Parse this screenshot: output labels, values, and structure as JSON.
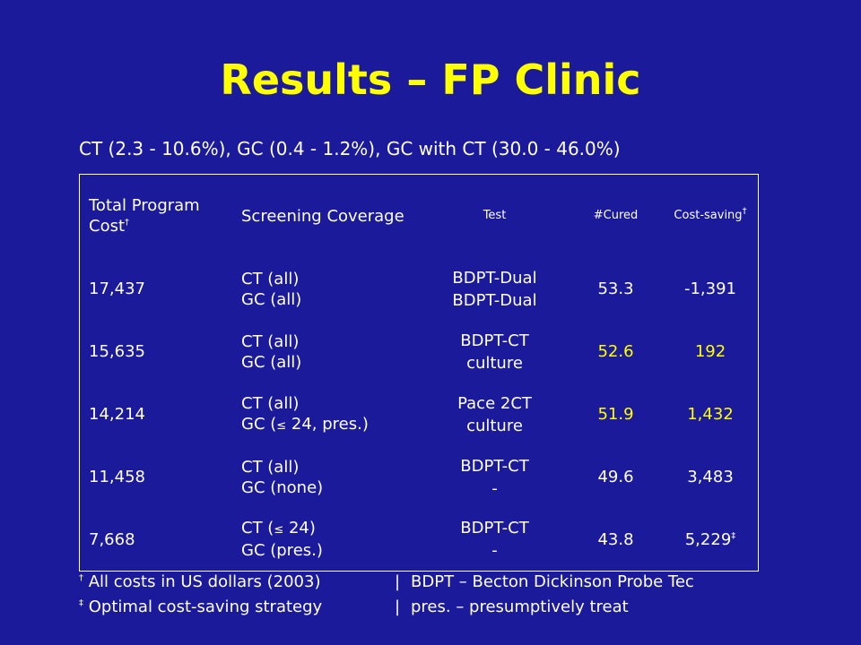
{
  "title": "Results – FP Clinic",
  "subtitle": "CT (2.3 - 10.6%), GC (0.4 - 1.2%), GC with CT (30.0 - 46.0%)",
  "table": {
    "headers": {
      "cost": "Total Program Cost",
      "coverage": "Screening Coverage",
      "test": "Test",
      "cured": "#Cured",
      "saving": "Cost-saving",
      "dagger": "†"
    },
    "rows": [
      {
        "cost": "17,437",
        "cov1": "CT (all)",
        "cov2": "GC (all)",
        "test1": "BDPT-Dual",
        "test2": "BDPT-Dual",
        "cured": "53.3",
        "saving": "-1,391",
        "mark": ""
      },
      {
        "cost": "15,635",
        "cov1": "CT (all)",
        "cov2": "GC (all)",
        "test1": "BDPT-CT",
        "test2": "culture",
        "cured": "52.6",
        "saving": "192",
        "mark": ""
      },
      {
        "cost": "14,214",
        "cov1": "CT (all)",
        "cov2a": "GC (",
        "cov2sym": "≤",
        "cov2b": " 24, pres.)",
        "test1": "Pace 2CT",
        "test2": "culture",
        "cured": "51.9",
        "saving": "1,432",
        "mark": ""
      },
      {
        "cost": "11,458",
        "cov1": "CT (all)",
        "cov2": "GC (none)",
        "test1": "BDPT-CT",
        "test2": "-",
        "cured": "49.6",
        "saving": "3,483",
        "mark": ""
      },
      {
        "cost": "7,668",
        "cov1a": "CT (",
        "cov1sym": "≤",
        "cov1b": " 24)",
        "cov2": "GC (pres.)",
        "test1": "BDPT-CT",
        "test2": "-",
        "cured": "43.8",
        "saving": "5,229",
        "mark": "‡"
      }
    ]
  },
  "footnotes": [
    {
      "mark": "†",
      "left": " All costs in US dollars (2003)",
      "sep": "|",
      "right": "BDPT – Becton Dickinson Probe Tec"
    },
    {
      "mark": "‡",
      "left": " Optimal cost-saving strategy",
      "sep": "|",
      "right": "pres. – presumptively treat"
    }
  ],
  "colors": {
    "background": "#1a1a9a",
    "text": "#ffffff",
    "highlight": "#ffff00"
  }
}
